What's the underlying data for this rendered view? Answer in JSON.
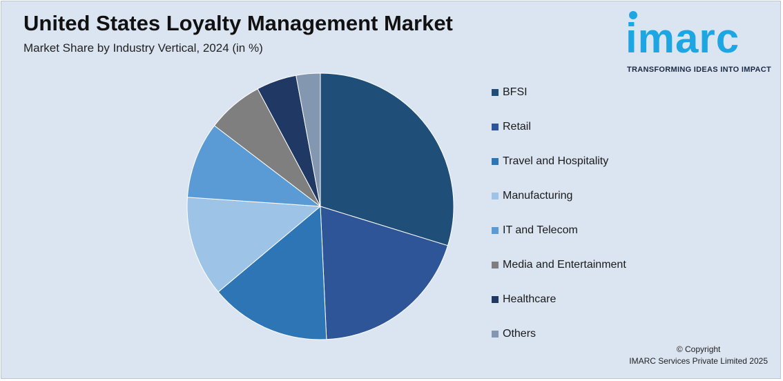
{
  "header": {
    "title": "United States Loyalty Management Market",
    "subtitle": "Market Share by Industry Vertical, 2024 (in %)"
  },
  "logo": {
    "word": "imarc",
    "tagline": "TRANSFORMING IDEAS INTO IMPACT",
    "color": "#1ea6e3"
  },
  "chart_data": {
    "type": "pie",
    "title": "United States Loyalty Management Market",
    "subtitle": "Market Share by Industry Vertical, 2024 (in %)",
    "legend_position": "right",
    "start_angle_deg": 0,
    "direction": "clockwise",
    "slices": [
      {
        "label": "BFSI",
        "value": 30.5,
        "color": "#1f4e79"
      },
      {
        "label": "Retail",
        "value": 20.0,
        "color": "#2e5597"
      },
      {
        "label": "Travel and Hospitality",
        "value": 15.0,
        "color": "#2e75b6"
      },
      {
        "label": "Manufacturing",
        "value": 12.5,
        "color": "#9dc3e6"
      },
      {
        "label": "IT and Telecom",
        "value": 9.5,
        "color": "#5b9bd5"
      },
      {
        "label": "Media and Entertainment",
        "value": 7.0,
        "color": "#7f7f7f"
      },
      {
        "label": "Healthcare",
        "value": 5.0,
        "color": "#203864"
      },
      {
        "label": "Others",
        "value": 3.0,
        "color": "#8497b0"
      }
    ]
  },
  "footer": {
    "copyright_line1": "© Copyright",
    "copyright_line2": "IMARC Services Private Limited 2025"
  }
}
